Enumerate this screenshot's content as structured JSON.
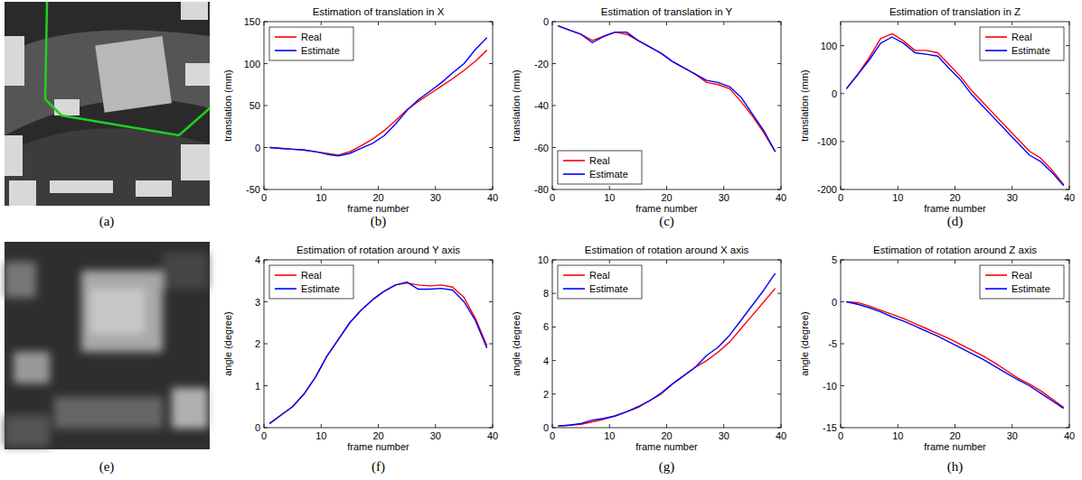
{
  "image_panels": [
    {
      "caption": "(a)"
    },
    {
      "caption": "(e)"
    }
  ],
  "chart_data": [
    {
      "type": "line",
      "title": "Estimation of translation in X",
      "x_label": "frame number",
      "y_label": "translation (mm)",
      "caption": "(b)",
      "x": [
        1,
        3,
        5,
        7,
        9,
        11,
        13,
        15,
        17,
        19,
        21,
        23,
        25,
        27,
        29,
        31,
        33,
        35,
        37,
        39
      ],
      "xlim": [
        0,
        40
      ],
      "xticks": [
        0,
        10,
        20,
        30,
        40
      ],
      "ylim": [
        -50,
        150
      ],
      "yticks": [
        -50,
        0,
        50,
        100,
        150
      ],
      "legend": "upper left",
      "series": [
        {
          "name": "Real",
          "color": "#ff0000",
          "values": [
            0,
            -1,
            -2,
            -3,
            -5,
            -7,
            -9,
            -5,
            2,
            10,
            20,
            32,
            45,
            55,
            64,
            73,
            82,
            92,
            103,
            116
          ]
        },
        {
          "name": "Estimate",
          "color": "#0000ff",
          "values": [
            0,
            -1,
            -2,
            -3,
            -5,
            -8,
            -10,
            -7,
            -1,
            5,
            14,
            28,
            44,
            57,
            67,
            77,
            89,
            100,
            117,
            131
          ]
        }
      ]
    },
    {
      "type": "line",
      "title": "Estimation of translation in Y",
      "x_label": "frame number",
      "y_label": "translation (mm)",
      "caption": "(c)",
      "x": [
        1,
        3,
        5,
        7,
        9,
        11,
        13,
        15,
        17,
        19,
        21,
        23,
        25,
        27,
        29,
        31,
        33,
        35,
        37,
        39
      ],
      "xlim": [
        0,
        40
      ],
      "xticks": [
        0,
        10,
        20,
        30,
        40
      ],
      "ylim": [
        -80,
        0
      ],
      "yticks": [
        -80,
        -60,
        -40,
        -20,
        0
      ],
      "legend": "lower left",
      "series": [
        {
          "name": "Real",
          "color": "#ff0000",
          "values": [
            -2,
            -4,
            -6,
            -9,
            -7,
            -5,
            -6,
            -9,
            -12,
            -15,
            -19,
            -22,
            -25,
            -29,
            -30,
            -32,
            -38,
            -45,
            -53,
            -62
          ]
        },
        {
          "name": "Estimate",
          "color": "#0000ff",
          "values": [
            -2,
            -4,
            -6,
            -10,
            -7,
            -5,
            -5,
            -9,
            -12,
            -15,
            -19,
            -22,
            -25,
            -28,
            -29,
            -31,
            -36,
            -44,
            -52,
            -62
          ]
        }
      ]
    },
    {
      "type": "line",
      "title": "Estimation of translation in Z",
      "x_label": "frame number",
      "y_label": "translation (mm)",
      "caption": "(d)",
      "x": [
        1,
        3,
        5,
        7,
        9,
        11,
        13,
        15,
        17,
        19,
        21,
        23,
        25,
        27,
        29,
        31,
        33,
        35,
        37,
        39
      ],
      "xlim": [
        0,
        40
      ],
      "xticks": [
        0,
        10,
        20,
        30,
        40
      ],
      "ylim": [
        -200,
        150
      ],
      "yticks": [
        -200,
        -100,
        0,
        100
      ],
      "legend": "upper right",
      "series": [
        {
          "name": "Real",
          "color": "#ff0000",
          "values": [
            10,
            40,
            75,
            115,
            125,
            110,
            90,
            90,
            85,
            60,
            35,
            5,
            -20,
            -45,
            -70,
            -95,
            -120,
            -135,
            -160,
            -190
          ]
        },
        {
          "name": "Estimate",
          "color": "#0000ff",
          "values": [
            10,
            40,
            70,
            105,
            118,
            105,
            85,
            82,
            78,
            52,
            28,
            -3,
            -28,
            -53,
            -78,
            -103,
            -128,
            -142,
            -165,
            -192
          ]
        }
      ]
    },
    {
      "type": "line",
      "title": "Estimation of rotation around Y axis",
      "x_label": "frame number",
      "y_label": "angle (degree)",
      "caption": "(f)",
      "x": [
        1,
        3,
        5,
        7,
        9,
        11,
        13,
        15,
        17,
        19,
        21,
        23,
        25,
        27,
        29,
        31,
        33,
        35,
        37,
        39
      ],
      "xlim": [
        0,
        40
      ],
      "xticks": [
        0,
        10,
        20,
        30,
        40
      ],
      "ylim": [
        0,
        4
      ],
      "yticks": [
        0,
        1,
        2,
        3,
        4
      ],
      "legend": "upper left",
      "series": [
        {
          "name": "Real",
          "color": "#ff0000",
          "values": [
            0.1,
            0.3,
            0.5,
            0.8,
            1.2,
            1.7,
            2.1,
            2.5,
            2.8,
            3.05,
            3.25,
            3.4,
            3.45,
            3.4,
            3.38,
            3.4,
            3.35,
            3.1,
            2.6,
            1.95
          ]
        },
        {
          "name": "Estimate",
          "color": "#0000ff",
          "values": [
            0.1,
            0.3,
            0.5,
            0.8,
            1.2,
            1.7,
            2.1,
            2.5,
            2.8,
            3.05,
            3.25,
            3.4,
            3.47,
            3.3,
            3.3,
            3.32,
            3.28,
            3.0,
            2.55,
            1.9
          ]
        }
      ]
    },
    {
      "type": "line",
      "title": "Estimation of rotation around X axis",
      "x_label": "frame number",
      "y_label": "angle (degree)",
      "caption": "(g)",
      "x": [
        1,
        3,
        5,
        7,
        9,
        11,
        13,
        15,
        17,
        19,
        21,
        23,
        25,
        27,
        29,
        31,
        33,
        35,
        37,
        39
      ],
      "xlim": [
        0,
        40
      ],
      "xticks": [
        0,
        10,
        20,
        30,
        40
      ],
      "ylim": [
        0,
        10
      ],
      "yticks": [
        0,
        2,
        4,
        6,
        8,
        10
      ],
      "legend": "upper left",
      "series": [
        {
          "name": "Real",
          "color": "#ff0000",
          "values": [
            0.1,
            0.15,
            0.2,
            0.35,
            0.5,
            0.7,
            0.95,
            1.2,
            1.6,
            2.0,
            2.6,
            3.1,
            3.6,
            4.0,
            4.5,
            5.1,
            5.9,
            6.7,
            7.5,
            8.3
          ]
        },
        {
          "name": "Estimate",
          "color": "#0000ff",
          "values": [
            0.1,
            0.15,
            0.25,
            0.45,
            0.55,
            0.7,
            0.95,
            1.25,
            1.6,
            2.05,
            2.6,
            3.1,
            3.6,
            4.3,
            4.8,
            5.5,
            6.4,
            7.3,
            8.2,
            9.2
          ]
        }
      ]
    },
    {
      "type": "line",
      "title": "Estimation of rotation around Z axis",
      "x_label": "frame number",
      "y_label": "angle (degree)",
      "caption": "(h)",
      "x": [
        1,
        3,
        5,
        7,
        9,
        11,
        13,
        15,
        17,
        19,
        21,
        23,
        25,
        27,
        29,
        31,
        33,
        35,
        37,
        39
      ],
      "xlim": [
        0,
        40
      ],
      "xticks": [
        0,
        10,
        20,
        30,
        40
      ],
      "ylim": [
        -15,
        5
      ],
      "yticks": [
        -15,
        -10,
        -5,
        0,
        5
      ],
      "legend": "upper right",
      "series": [
        {
          "name": "Real",
          "color": "#ff0000",
          "values": [
            0,
            -0.1,
            -0.5,
            -1,
            -1.5,
            -2,
            -2.6,
            -3.2,
            -3.8,
            -4.4,
            -5.1,
            -5.8,
            -6.5,
            -7.3,
            -8.2,
            -9.1,
            -9.8,
            -10.6,
            -11.6,
            -12.6
          ]
        },
        {
          "name": "Estimate",
          "color": "#0000ff",
          "values": [
            0,
            -0.3,
            -0.7,
            -1.2,
            -1.8,
            -2.3,
            -2.9,
            -3.5,
            -4.1,
            -4.8,
            -5.5,
            -6.2,
            -6.9,
            -7.7,
            -8.5,
            -9.3,
            -10.0,
            -10.9,
            -11.8,
            -12.7
          ]
        }
      ]
    }
  ]
}
